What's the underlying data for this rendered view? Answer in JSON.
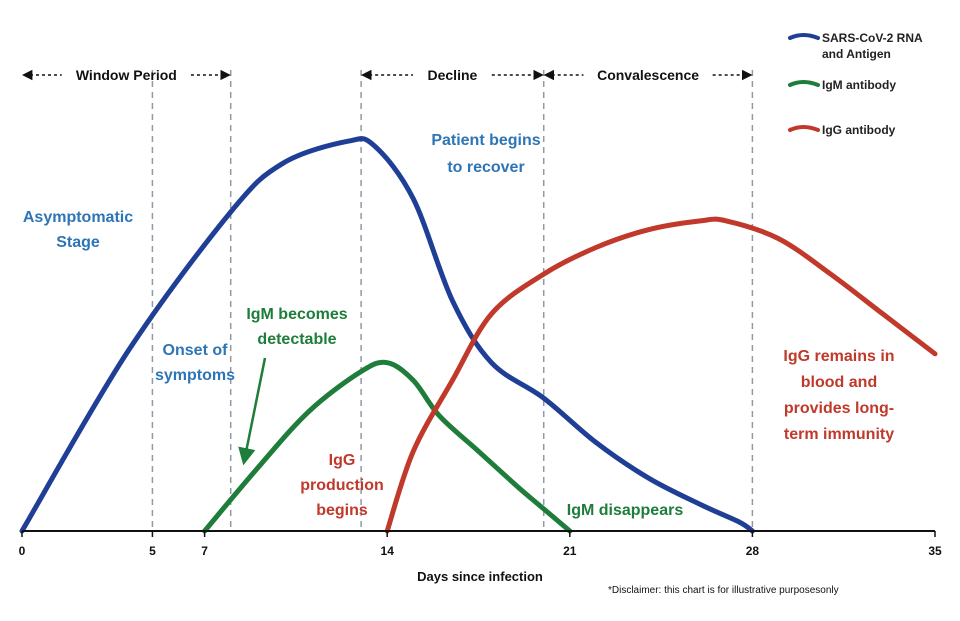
{
  "chart_data": {
    "type": "line",
    "xlabel": "Days since infection",
    "x_ticks": [
      0,
      5,
      7,
      14,
      21,
      28,
      35
    ],
    "xlim": [
      0,
      35
    ],
    "grid": false,
    "legend_position": "top-right",
    "phases": [
      {
        "name": "window-period",
        "label": "Window Period",
        "from": 0,
        "to": 8
      },
      {
        "name": "decline",
        "label": "Decline",
        "from": 13,
        "to": 20
      },
      {
        "name": "convalescence",
        "label": "Convalescence",
        "from": 20,
        "to": 28
      }
    ],
    "guide_lines_x": [
      5,
      8,
      13,
      20,
      28
    ],
    "series": [
      {
        "name": "SARS-CoV-2 RNA and Antigen",
        "legend_lines": [
          "SARS-CoV-2 RNA",
          "and Antigen"
        ],
        "color": "#1f3f96",
        "points": [
          [
            0,
            0
          ],
          [
            4,
            40
          ],
          [
            8,
            72
          ],
          [
            10,
            83
          ],
          [
            12.5,
            88
          ],
          [
            13.5,
            87
          ],
          [
            15,
            75
          ],
          [
            16.5,
            52
          ],
          [
            18,
            38
          ],
          [
            20,
            30
          ],
          [
            22,
            20
          ],
          [
            24,
            12
          ],
          [
            26,
            6
          ],
          [
            27.5,
            2
          ],
          [
            28,
            0
          ]
        ]
      },
      {
        "name": "IgM antibody",
        "legend_lines": [
          "IgM antibody"
        ],
        "color": "#1e7d3a",
        "points": [
          [
            7,
            0
          ],
          [
            9,
            14
          ],
          [
            11,
            27
          ],
          [
            13,
            36
          ],
          [
            14,
            38
          ],
          [
            15,
            34
          ],
          [
            16,
            26
          ],
          [
            17.5,
            18
          ],
          [
            19,
            10
          ],
          [
            20,
            5
          ],
          [
            21,
            0
          ]
        ]
      },
      {
        "name": "IgG antibody",
        "legend_lines": [
          "IgG antibody"
        ],
        "color": "#c0392b",
        "points": [
          [
            14,
            0
          ],
          [
            15,
            18
          ],
          [
            16.5,
            34
          ],
          [
            18,
            49
          ],
          [
            20,
            58
          ],
          [
            22,
            64
          ],
          [
            24,
            68
          ],
          [
            26,
            70
          ],
          [
            27,
            70
          ],
          [
            29,
            66
          ],
          [
            31,
            58
          ],
          [
            33,
            49
          ],
          [
            35,
            40
          ]
        ]
      }
    ],
    "annotations": [
      {
        "name": "asymptomatic-stage-label",
        "lines": [
          "Asymptomatic",
          "Stage"
        ],
        "color": "#2e75b6"
      },
      {
        "name": "onset-symptoms-label",
        "lines": [
          "Onset of",
          "symptoms"
        ],
        "color": "#2e75b6"
      },
      {
        "name": "patient-recover-label",
        "lines": [
          "Patient begins",
          "to recover"
        ],
        "color": "#2e75b6"
      },
      {
        "name": "igm-detectable-label",
        "lines": [
          "IgM becomes",
          "detectable"
        ],
        "color": "#1e7d3a"
      },
      {
        "name": "igg-production-label",
        "lines": [
          "IgG",
          "production",
          "begins"
        ],
        "color": "#c0392b"
      },
      {
        "name": "igm-disappears-label",
        "lines": [
          "IgM disappears"
        ],
        "color": "#1e7d3a"
      },
      {
        "name": "igg-remains-label",
        "lines": [
          "IgG remains in",
          "blood and",
          "provides long-",
          "term immunity"
        ],
        "color": "#c0392b"
      }
    ],
    "disclaimer": "*Disclaimer: this chart is for illustrative purposesonly"
  }
}
